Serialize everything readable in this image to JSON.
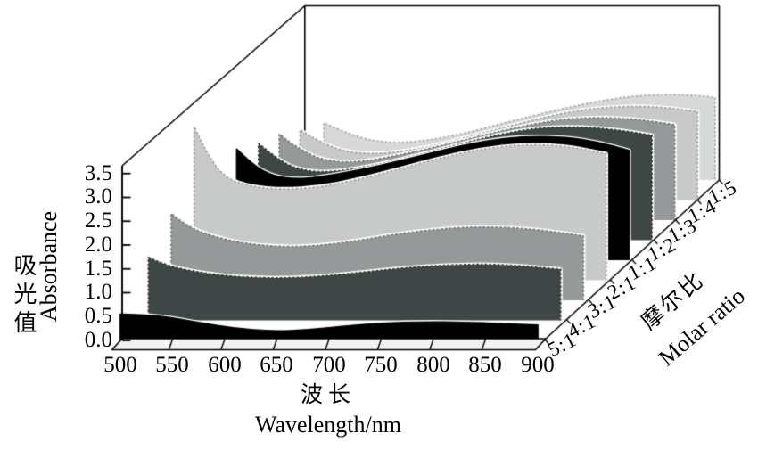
{
  "chart_data": {
    "type": "area",
    "variant": "3d-waterfall",
    "title": "",
    "background": "#ffffff",
    "frame_color": "#000000",
    "x_axis": {
      "title_zh": "波长",
      "title_en": "Wavelength/nm",
      "min": 500,
      "max": 900,
      "tick_labels": [
        "500",
        "550",
        "600",
        "650",
        "700",
        "750",
        "800",
        "850",
        "900"
      ]
    },
    "y_axis": {
      "title_zh": "吸光值",
      "title_en": "Absorbance",
      "min": 0.0,
      "max": 3.5,
      "tick_labels": [
        "0.0",
        "0.5",
        "1.0",
        "1.5",
        "2.0",
        "2.5",
        "3.0",
        "3.5"
      ]
    },
    "z_axis": {
      "title_zh": "摩尔比",
      "title_en": "Molar ratio",
      "tick_labels": [
        "5:1",
        "4:1",
        "3:1",
        "2:1",
        "1:1",
        "1:2",
        "1:3",
        "1:4",
        "1:5"
      ]
    },
    "series": [
      {
        "name": "5:1",
        "color": "#000000",
        "points": [
          [
            500,
            0.55
          ],
          [
            520,
            0.54
          ],
          [
            545,
            0.49
          ],
          [
            575,
            0.37
          ],
          [
            610,
            0.25
          ],
          [
            645,
            0.19
          ],
          [
            680,
            0.22
          ],
          [
            715,
            0.3
          ],
          [
            750,
            0.36
          ],
          [
            790,
            0.39
          ],
          [
            830,
            0.38
          ],
          [
            865,
            0.35
          ],
          [
            900,
            0.32
          ]
        ]
      },
      {
        "name": "4:1",
        "color": "#3E4746",
        "points": [
          [
            505,
            1.32
          ],
          [
            520,
            1.17
          ],
          [
            545,
            1.04
          ],
          [
            575,
            0.94
          ],
          [
            610,
            0.89
          ],
          [
            645,
            0.89
          ],
          [
            680,
            0.94
          ],
          [
            715,
            1.02
          ],
          [
            750,
            1.1
          ],
          [
            790,
            1.16
          ],
          [
            830,
            1.18
          ],
          [
            865,
            1.14
          ],
          [
            900,
            1.07
          ]
        ]
      },
      {
        "name": "3:1",
        "color": "#969999",
        "points": [
          [
            505,
            1.82
          ],
          [
            520,
            1.55
          ],
          [
            545,
            1.34
          ],
          [
            575,
            1.19
          ],
          [
            610,
            1.12
          ],
          [
            645,
            1.14
          ],
          [
            680,
            1.24
          ],
          [
            715,
            1.37
          ],
          [
            750,
            1.47
          ],
          [
            790,
            1.54
          ],
          [
            830,
            1.53
          ],
          [
            865,
            1.46
          ],
          [
            900,
            1.35
          ]
        ]
      },
      {
        "name": "2:1",
        "color": "#C8CACA",
        "points": [
          [
            505,
            3.22
          ],
          [
            518,
            2.62
          ],
          [
            535,
            2.14
          ],
          [
            560,
            1.96
          ],
          [
            590,
            1.9
          ],
          [
            625,
            1.95
          ],
          [
            660,
            2.1
          ],
          [
            700,
            2.32
          ],
          [
            740,
            2.56
          ],
          [
            780,
            2.75
          ],
          [
            820,
            2.85
          ],
          [
            860,
            2.82
          ],
          [
            900,
            2.65
          ]
        ]
      },
      {
        "name": "1:1",
        "color": "#000000",
        "points": [
          [
            524,
            2.33
          ],
          [
            540,
            1.98
          ],
          [
            560,
            1.76
          ],
          [
            580,
            1.7
          ],
          [
            600,
            1.73
          ],
          [
            640,
            1.88
          ],
          [
            680,
            2.08
          ],
          [
            720,
            2.3
          ],
          [
            760,
            2.5
          ],
          [
            800,
            2.6
          ],
          [
            840,
            2.58
          ],
          [
            870,
            2.48
          ],
          [
            900,
            2.3
          ]
        ]
      },
      {
        "name": "1:2",
        "color": "#3E4746",
        "points": [
          [
            523,
            2.03
          ],
          [
            545,
            1.62
          ],
          [
            570,
            1.44
          ],
          [
            595,
            1.43
          ],
          [
            630,
            1.55
          ],
          [
            670,
            1.75
          ],
          [
            710,
            1.98
          ],
          [
            750,
            2.2
          ],
          [
            790,
            2.36
          ],
          [
            830,
            2.38
          ],
          [
            865,
            2.32
          ],
          [
            900,
            2.2
          ]
        ]
      },
      {
        "name": "1:3",
        "color": "#969999",
        "points": [
          [
            521,
            1.8
          ],
          [
            545,
            1.4
          ],
          [
            572,
            1.22
          ],
          [
            600,
            1.22
          ],
          [
            640,
            1.38
          ],
          [
            680,
            1.58
          ],
          [
            720,
            1.8
          ],
          [
            760,
            2.0
          ],
          [
            800,
            2.14
          ],
          [
            840,
            2.15
          ],
          [
            870,
            2.1
          ],
          [
            900,
            2.0
          ]
        ]
      },
      {
        "name": "1:4",
        "color": "#C8CACA",
        "points": [
          [
            519,
            1.47
          ],
          [
            545,
            1.12
          ],
          [
            575,
            0.97
          ],
          [
            605,
            0.98
          ],
          [
            645,
            1.12
          ],
          [
            685,
            1.35
          ],
          [
            725,
            1.58
          ],
          [
            765,
            1.8
          ],
          [
            805,
            1.94
          ],
          [
            845,
            1.97
          ],
          [
            875,
            1.93
          ],
          [
            900,
            1.85
          ]
        ]
      },
      {
        "name": "1:5",
        "color": "#D7D8D8",
        "points": [
          [
            520,
            1.2
          ],
          [
            550,
            0.9
          ],
          [
            580,
            0.78
          ],
          [
            610,
            0.8
          ],
          [
            650,
            0.95
          ],
          [
            690,
            1.18
          ],
          [
            730,
            1.4
          ],
          [
            770,
            1.6
          ],
          [
            810,
            1.75
          ],
          [
            850,
            1.8
          ],
          [
            880,
            1.77
          ],
          [
            895,
            1.73
          ]
        ]
      }
    ]
  }
}
